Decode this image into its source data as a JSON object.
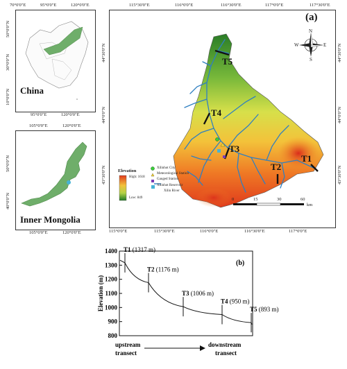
{
  "china_inset": {
    "label": "China",
    "lon_ticks_top": [
      "70°0'0\"E",
      "95°0'0\"E",
      "120°0'0\"E"
    ],
    "lon_ticks_bottom": [
      "95°0'0\"E",
      "120°0'0\"E"
    ],
    "lat_ticks": [
      "50°0'0\"N",
      "30°0'0\"N",
      "10°0'0\"N"
    ]
  },
  "mongolia_inset": {
    "label": "Inner Mongolia",
    "lon_ticks_top": [
      "105°0'0\"E",
      "120°0'0\"E"
    ],
    "lon_ticks_bottom": [
      "105°0'0\"E",
      "120°0'0\"E"
    ],
    "lat_ticks": [
      "50°0'0\"N",
      "40°0'0\"N"
    ]
  },
  "main_map": {
    "panel_label": "(a)",
    "lon_ticks_top": [
      "115°30'0\"E",
      "116°0'0\"E",
      "116°30'0\"E",
      "117°0'0\"E",
      "117°30'0\"E"
    ],
    "lon_ticks_bottom": [
      "115°0'0\"E",
      "115°30'0\"E",
      "116°0'0\"E",
      "116°30'0\"E",
      "117°0'0\"E"
    ],
    "lat_ticks_left": [
      "44°30'0\"N",
      "44°0'0\"N",
      "43°30'0\"N"
    ],
    "lat_ticks_right": [
      "44°30'0\"N",
      "44°0'0\"N",
      "43°30'0\"N"
    ],
    "compass": {
      "n": "N",
      "s": "S",
      "e": "E",
      "w": "W"
    },
    "transects": [
      "T1",
      "T2",
      "T3",
      "T4",
      "T5"
    ],
    "legend": {
      "title": "Elevation",
      "high": "High: 1618",
      "low": "Low: 849",
      "items": [
        "Xilinhot City",
        "Meteorological Station",
        "Gauged Station",
        "Xilinhot Reservoir",
        "Xilin River"
      ]
    },
    "scale": {
      "ticks": [
        "0",
        "15",
        "30",
        "60"
      ],
      "unit": "km"
    }
  },
  "profile": {
    "panel_label": "(b)",
    "ylabel": "Elevation (m)",
    "yticks": [
      "1400",
      "1300",
      "1200",
      "1100",
      "1000",
      "900",
      "800"
    ],
    "bottom_left": [
      "upstream",
      "transect"
    ],
    "bottom_right": [
      "downstream",
      "transect"
    ]
  },
  "chart_data": {
    "type": "line",
    "ylabel": "Elevation (m)",
    "ylim": [
      800,
      1400
    ],
    "points": [
      {
        "name": "T1",
        "label": "(1317 m)",
        "elevation": 1317
      },
      {
        "name": "T2",
        "label": "(1176 m)",
        "elevation": 1176
      },
      {
        "name": "T3",
        "label": "(1006 m)",
        "elevation": 1006
      },
      {
        "name": "T4",
        "label": "(950 m)",
        "elevation": 950
      },
      {
        "name": "T5",
        "label": "(893 m)",
        "elevation": 893
      }
    ]
  },
  "colors": {
    "inset_region": "#6fae6a",
    "river": "#2f7fc1",
    "high": "#e03a1c",
    "low": "#1f7a24"
  }
}
